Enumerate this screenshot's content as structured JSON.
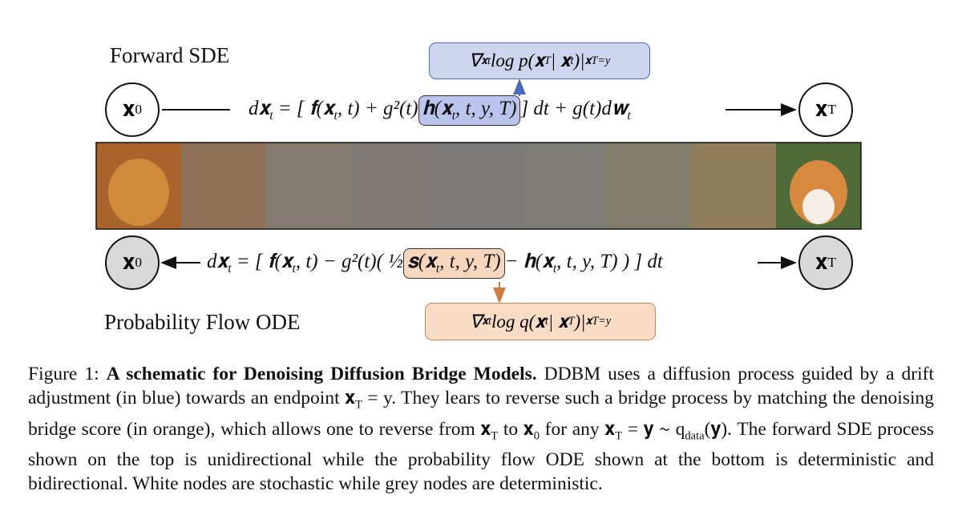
{
  "figure": {
    "forward": {
      "label": "Forward SDE",
      "start_node": [
        "𝐱",
        "0"
      ],
      "end_node": [
        "𝐱",
        "T"
      ],
      "eq_pre": [
        "d𝐱",
        "t",
        " = [ 𝐟(𝐱",
        "t",
        ", t) + g²(t)"
      ],
      "eq_drift": [
        "𝐡(𝐱",
        "t",
        ", t, y, T)"
      ],
      "eq_post": [
        " ] dt + g(t)d𝐰",
        "t"
      ],
      "note": [
        "∇",
        "𝐱t",
        " log p(𝐱",
        "T",
        " | 𝐱",
        "t",
        ")|",
        "𝐱T=y"
      ]
    },
    "reverse": {
      "label": "Probability Flow ODE",
      "start_node": [
        "𝐱",
        "0"
      ],
      "end_node": [
        "𝐱",
        "T"
      ],
      "eq_pre": [
        "d𝐱",
        "t",
        " = [ 𝐟(𝐱",
        "t",
        ", t) − g²(t)( ½"
      ],
      "eq_score": [
        "𝐬(𝐱",
        "t",
        ", t, y, T)"
      ],
      "eq_post": [
        " − 𝐡(𝐱",
        "t",
        ", t, y, T) ) ] dt"
      ],
      "note": [
        "∇",
        "𝐱t",
        " log q(𝐱",
        "t",
        " | 𝐱",
        "T",
        ")|",
        "𝐱T=y"
      ]
    },
    "caption": {
      "label": "Figure 1:",
      "title": "A schematic for Denoising Diffusion Bridge Models.",
      "body": [
        "DDBM uses a diffusion process guided by a drift adjustment (in blue) towards an endpoint 𝐱",
        "T",
        " = y. They lears to reverse such a bridge process by matching the denoising bridge score (in orange), which allows one to reverse from 𝐱",
        "T",
        " to 𝐱",
        "0",
        " for any 𝐱",
        "T",
        " = 𝐲 ∼ q",
        "data",
        "(𝐲). The forward SDE process shown on the top is unidirectional while the probability flow ODE shown at the bottom is deterministic and bidirectional. White nodes are stochastic while grey nodes are deterministic."
      ]
    }
  }
}
